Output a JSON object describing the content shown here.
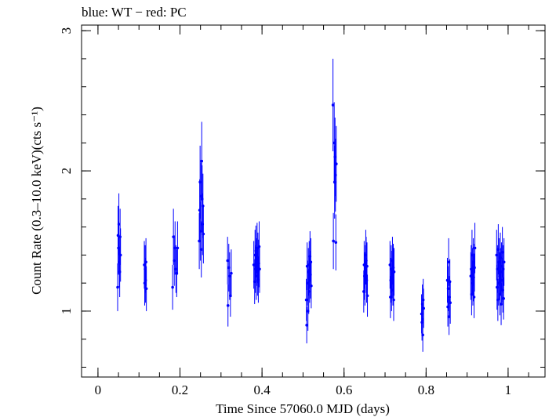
{
  "chart_data": {
    "type": "scatter",
    "title": "blue: WT − red: PC",
    "xlabel": "Time Since 57060.0 MJD (days)",
    "ylabel": "Count Rate (0.3–10.0 keV)(cts s⁻¹)",
    "xlim": [
      -0.04,
      1.09
    ],
    "ylim": [
      0.53,
      3.04
    ],
    "x_ticks": [
      {
        "value": 0,
        "label": "0"
      },
      {
        "value": 0.2,
        "label": "0.2"
      },
      {
        "value": 0.4,
        "label": "0.4"
      },
      {
        "value": 0.6,
        "label": "0.6"
      },
      {
        "value": 0.8,
        "label": "0.8"
      },
      {
        "value": 1,
        "label": "1"
      }
    ],
    "x_minor_step": 0.05,
    "y_ticks": [
      {
        "value": 1,
        "label": "1"
      },
      {
        "value": 2,
        "label": "2"
      },
      {
        "value": 3,
        "label": "3"
      }
    ],
    "y_minor_step": 0.2,
    "grid": false,
    "legend": "none",
    "series": [
      {
        "name": "WT",
        "color": "#0000ff",
        "points": [
          {
            "x": 0.048,
            "y": 1.17,
            "err": 0.17
          },
          {
            "x": 0.049,
            "y": 1.54,
            "err": 0.21
          },
          {
            "x": 0.05,
            "y": 1.45,
            "err": 0.19
          },
          {
            "x": 0.051,
            "y": 1.62,
            "err": 0.22
          },
          {
            "x": 0.052,
            "y": 1.35,
            "err": 0.18
          },
          {
            "x": 0.053,
            "y": 1.28,
            "err": 0.18
          },
          {
            "x": 0.054,
            "y": 1.53,
            "err": 0.2
          },
          {
            "x": 0.055,
            "y": 1.4,
            "err": 0.19
          },
          {
            "x": 0.113,
            "y": 1.33,
            "err": 0.17
          },
          {
            "x": 0.114,
            "y": 1.2,
            "err": 0.16
          },
          {
            "x": 0.115,
            "y": 1.3,
            "err": 0.17
          },
          {
            "x": 0.116,
            "y": 1.22,
            "err": 0.16
          },
          {
            "x": 0.117,
            "y": 1.35,
            "err": 0.17
          },
          {
            "x": 0.118,
            "y": 1.16,
            "err": 0.16
          },
          {
            "x": 0.182,
            "y": 1.17,
            "err": 0.16
          },
          {
            "x": 0.184,
            "y": 1.53,
            "err": 0.2
          },
          {
            "x": 0.186,
            "y": 1.36,
            "err": 0.18
          },
          {
            "x": 0.188,
            "y": 1.45,
            "err": 0.19
          },
          {
            "x": 0.19,
            "y": 1.3,
            "err": 0.17
          },
          {
            "x": 0.192,
            "y": 1.27,
            "err": 0.17
          },
          {
            "x": 0.194,
            "y": 1.45,
            "err": 0.19
          },
          {
            "x": 0.247,
            "y": 1.5,
            "err": 0.2
          },
          {
            "x": 0.248,
            "y": 1.72,
            "err": 0.22
          },
          {
            "x": 0.249,
            "y": 1.92,
            "err": 0.26
          },
          {
            "x": 0.25,
            "y": 1.57,
            "err": 0.21
          },
          {
            "x": 0.251,
            "y": 1.82,
            "err": 0.24
          },
          {
            "x": 0.252,
            "y": 1.44,
            "err": 0.2
          },
          {
            "x": 0.253,
            "y": 2.07,
            "err": 0.28
          },
          {
            "x": 0.254,
            "y": 1.8,
            "err": 0.24
          },
          {
            "x": 0.255,
            "y": 1.62,
            "err": 0.22
          },
          {
            "x": 0.256,
            "y": 1.75,
            "err": 0.23
          },
          {
            "x": 0.257,
            "y": 1.55,
            "err": 0.21
          },
          {
            "x": 0.316,
            "y": 1.36,
            "err": 0.17
          },
          {
            "x": 0.317,
            "y": 1.04,
            "err": 0.15
          },
          {
            "x": 0.319,
            "y": 1.31,
            "err": 0.17
          },
          {
            "x": 0.321,
            "y": 1.25,
            "err": 0.17
          },
          {
            "x": 0.323,
            "y": 1.11,
            "err": 0.15
          },
          {
            "x": 0.325,
            "y": 1.27,
            "err": 0.17
          },
          {
            "x": 0.38,
            "y": 1.33,
            "err": 0.17
          },
          {
            "x": 0.382,
            "y": 1.21,
            "err": 0.16
          },
          {
            "x": 0.383,
            "y": 1.4,
            "err": 0.18
          },
          {
            "x": 0.384,
            "y": 1.3,
            "err": 0.17
          },
          {
            "x": 0.385,
            "y": 1.43,
            "err": 0.18
          },
          {
            "x": 0.386,
            "y": 1.25,
            "err": 0.17
          },
          {
            "x": 0.387,
            "y": 1.35,
            "err": 0.17
          },
          {
            "x": 0.388,
            "y": 1.45,
            "err": 0.18
          },
          {
            "x": 0.389,
            "y": 1.28,
            "err": 0.17
          },
          {
            "x": 0.39,
            "y": 1.38,
            "err": 0.18
          },
          {
            "x": 0.391,
            "y": 1.22,
            "err": 0.16
          },
          {
            "x": 0.392,
            "y": 1.34,
            "err": 0.17
          },
          {
            "x": 0.393,
            "y": 1.46,
            "err": 0.18
          },
          {
            "x": 0.394,
            "y": 1.3,
            "err": 0.17
          },
          {
            "x": 0.508,
            "y": 1.08,
            "err": 0.15
          },
          {
            "x": 0.509,
            "y": 0.9,
            "err": 0.13
          },
          {
            "x": 0.51,
            "y": 1.32,
            "err": 0.17
          },
          {
            "x": 0.511,
            "y": 1.2,
            "err": 0.16
          },
          {
            "x": 0.512,
            "y": 1.0,
            "err": 0.14
          },
          {
            "x": 0.513,
            "y": 1.28,
            "err": 0.17
          },
          {
            "x": 0.514,
            "y": 1.14,
            "err": 0.16
          },
          {
            "x": 0.515,
            "y": 1.33,
            "err": 0.17
          },
          {
            "x": 0.516,
            "y": 1.22,
            "err": 0.16
          },
          {
            "x": 0.517,
            "y": 1.39,
            "err": 0.18
          },
          {
            "x": 0.518,
            "y": 1.26,
            "err": 0.17
          },
          {
            "x": 0.519,
            "y": 1.35,
            "err": 0.17
          },
          {
            "x": 0.52,
            "y": 1.18,
            "err": 0.16
          },
          {
            "x": 0.573,
            "y": 2.47,
            "err": 0.33
          },
          {
            "x": 0.574,
            "y": 1.5,
            "err": 0.2
          },
          {
            "x": 0.576,
            "y": 2.2,
            "err": 0.29
          },
          {
            "x": 0.577,
            "y": 1.92,
            "err": 0.26
          },
          {
            "x": 0.578,
            "y": 2.1,
            "err": 0.28
          },
          {
            "x": 0.579,
            "y": 1.97,
            "err": 0.26
          },
          {
            "x": 0.58,
            "y": 1.49,
            "err": 0.2
          },
          {
            "x": 0.581,
            "y": 2.05,
            "err": 0.27
          },
          {
            "x": 0.648,
            "y": 1.14,
            "err": 0.15
          },
          {
            "x": 0.649,
            "y": 1.33,
            "err": 0.17
          },
          {
            "x": 0.65,
            "y": 1.25,
            "err": 0.17
          },
          {
            "x": 0.651,
            "y": 1.2,
            "err": 0.16
          },
          {
            "x": 0.652,
            "y": 1.3,
            "err": 0.17
          },
          {
            "x": 0.653,
            "y": 1.4,
            "err": 0.18
          },
          {
            "x": 0.654,
            "y": 1.36,
            "err": 0.17
          },
          {
            "x": 0.655,
            "y": 1.22,
            "err": 0.16
          },
          {
            "x": 0.656,
            "y": 1.32,
            "err": 0.17
          },
          {
            "x": 0.657,
            "y": 1.11,
            "err": 0.15
          },
          {
            "x": 0.712,
            "y": 1.33,
            "err": 0.17
          },
          {
            "x": 0.713,
            "y": 1.1,
            "err": 0.15
          },
          {
            "x": 0.714,
            "y": 1.22,
            "err": 0.16
          },
          {
            "x": 0.715,
            "y": 1.3,
            "err": 0.17
          },
          {
            "x": 0.716,
            "y": 1.15,
            "err": 0.15
          },
          {
            "x": 0.717,
            "y": 1.26,
            "err": 0.17
          },
          {
            "x": 0.718,
            "y": 1.36,
            "err": 0.17
          },
          {
            "x": 0.719,
            "y": 1.2,
            "err": 0.16
          },
          {
            "x": 0.72,
            "y": 1.31,
            "err": 0.17
          },
          {
            "x": 0.721,
            "y": 1.08,
            "err": 0.15
          },
          {
            "x": 0.722,
            "y": 1.28,
            "err": 0.17
          },
          {
            "x": 0.789,
            "y": 0.98,
            "err": 0.14
          },
          {
            "x": 0.79,
            "y": 0.92,
            "err": 0.13
          },
          {
            "x": 0.791,
            "y": 1.05,
            "err": 0.14
          },
          {
            "x": 0.792,
            "y": 0.83,
            "err": 0.12
          },
          {
            "x": 0.793,
            "y": 1.08,
            "err": 0.15
          },
          {
            "x": 0.794,
            "y": 1.02,
            "err": 0.14
          },
          {
            "x": 0.852,
            "y": 1.22,
            "err": 0.16
          },
          {
            "x": 0.853,
            "y": 1.03,
            "err": 0.14
          },
          {
            "x": 0.854,
            "y": 1.16,
            "err": 0.16
          },
          {
            "x": 0.855,
            "y": 1.35,
            "err": 0.17
          },
          {
            "x": 0.856,
            "y": 0.96,
            "err": 0.13
          },
          {
            "x": 0.857,
            "y": 1.1,
            "err": 0.15
          },
          {
            "x": 0.858,
            "y": 1.21,
            "err": 0.16
          },
          {
            "x": 0.859,
            "y": 1.06,
            "err": 0.15
          },
          {
            "x": 0.909,
            "y": 1.25,
            "err": 0.17
          },
          {
            "x": 0.91,
            "y": 1.3,
            "err": 0.17
          },
          {
            "x": 0.911,
            "y": 1.12,
            "err": 0.15
          },
          {
            "x": 0.912,
            "y": 1.4,
            "err": 0.18
          },
          {
            "x": 0.913,
            "y": 1.28,
            "err": 0.17
          },
          {
            "x": 0.914,
            "y": 1.2,
            "err": 0.16
          },
          {
            "x": 0.915,
            "y": 1.35,
            "err": 0.17
          },
          {
            "x": 0.916,
            "y": 1.24,
            "err": 0.17
          },
          {
            "x": 0.917,
            "y": 1.1,
            "err": 0.15
          },
          {
            "x": 0.918,
            "y": 1.31,
            "err": 0.17
          },
          {
            "x": 0.919,
            "y": 1.45,
            "err": 0.18
          },
          {
            "x": 0.972,
            "y": 1.4,
            "err": 0.18
          },
          {
            "x": 0.973,
            "y": 1.17,
            "err": 0.16
          },
          {
            "x": 0.974,
            "y": 1.3,
            "err": 0.17
          },
          {
            "x": 0.975,
            "y": 1.08,
            "err": 0.15
          },
          {
            "x": 0.976,
            "y": 1.44,
            "err": 0.18
          },
          {
            "x": 0.977,
            "y": 1.2,
            "err": 0.16
          },
          {
            "x": 0.978,
            "y": 1.35,
            "err": 0.17
          },
          {
            "x": 0.979,
            "y": 1.25,
            "err": 0.17
          },
          {
            "x": 0.98,
            "y": 1.12,
            "err": 0.15
          },
          {
            "x": 0.981,
            "y": 1.38,
            "err": 0.18
          },
          {
            "x": 0.982,
            "y": 1.28,
            "err": 0.17
          },
          {
            "x": 0.983,
            "y": 1.05,
            "err": 0.15
          },
          {
            "x": 0.984,
            "y": 1.32,
            "err": 0.17
          },
          {
            "x": 0.985,
            "y": 1.22,
            "err": 0.16
          },
          {
            "x": 0.986,
            "y": 1.42,
            "err": 0.18
          },
          {
            "x": 0.987,
            "y": 1.15,
            "err": 0.16
          },
          {
            "x": 0.988,
            "y": 1.3,
            "err": 0.17
          },
          {
            "x": 0.989,
            "y": 1.09,
            "err": 0.15
          },
          {
            "x": 0.99,
            "y": 1.35,
            "err": 0.17
          }
        ]
      },
      {
        "name": "PC",
        "color": "#ff0000",
        "points": []
      }
    ]
  }
}
